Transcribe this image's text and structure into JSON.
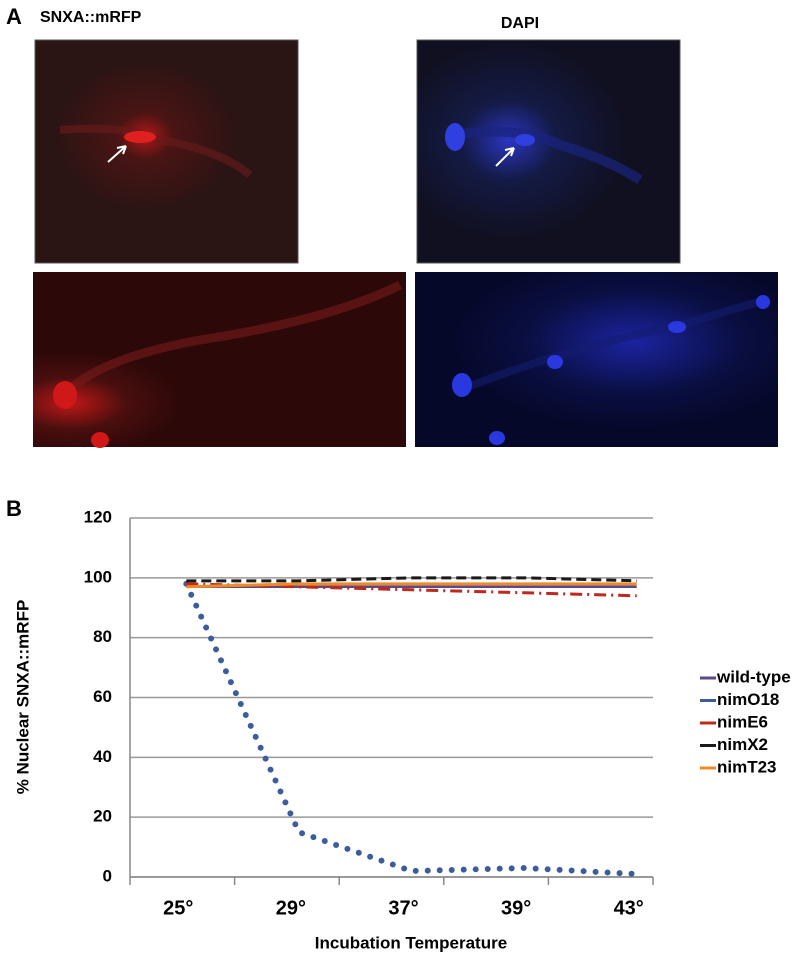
{
  "panel_labels": [
    "A",
    "B"
  ],
  "image_titles": [
    "SNXA::mRFP",
    "DAPI"
  ],
  "chart_data": {
    "type": "line",
    "y_label": "% Nuclear SNXA::mRFP",
    "x_label": "Incubation Temperature",
    "categories": [
      "25°",
      "29°",
      "37°",
      "39°",
      "43°"
    ],
    "series": [
      {
        "name": "wild-type",
        "color": "#5b4a8b",
        "values": [
          97,
          97,
          97,
          97,
          97
        ]
      },
      {
        "name": "nimO18",
        "color": "#3d5c9c",
        "values": [
          98,
          15,
          2,
          3,
          1
        ]
      },
      {
        "name": "nimE6",
        "color": "#c0281e",
        "values": [
          98,
          97,
          96,
          95,
          94
        ]
      },
      {
        "name": "nimX2",
        "color": "#1a1a1a",
        "values": [
          99,
          99,
          100,
          100,
          99
        ]
      },
      {
        "name": "nimT23",
        "color": "#f08a24",
        "values": [
          97,
          98,
          98,
          98,
          98
        ]
      }
    ],
    "ylim": [
      0,
      120
    ],
    "yticks": [
      0,
      20,
      40,
      60,
      80,
      100,
      120
    ],
    "grid": true,
    "legend": "right"
  }
}
